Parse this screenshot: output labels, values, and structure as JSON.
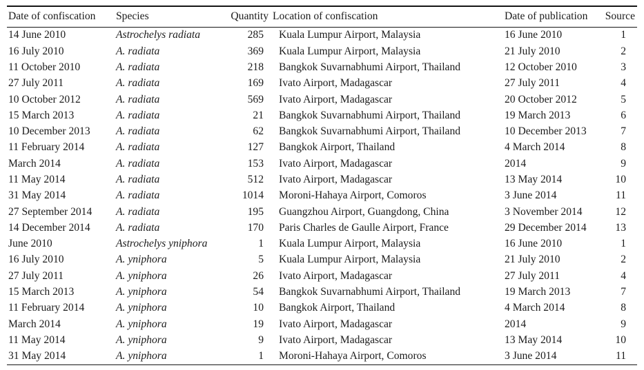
{
  "table": {
    "columns": [
      {
        "key": "date_of_confiscation",
        "label": "Date of confiscation",
        "align": "left"
      },
      {
        "key": "species",
        "label": "Species",
        "align": "left",
        "style": "italic-cells"
      },
      {
        "key": "quantity",
        "label": "Quantity",
        "align": "right"
      },
      {
        "key": "location_of_confiscation",
        "label": "Location of confiscation",
        "align": "left"
      },
      {
        "key": "date_of_publication",
        "label": "Date of publication",
        "align": "left"
      },
      {
        "key": "source",
        "label": "Source",
        "align": "right"
      }
    ],
    "rows": [
      [
        "14 June 2010",
        "Astrochelys radiata",
        "285",
        "Kuala Lumpur Airport, Malaysia",
        "16 June 2010",
        "1"
      ],
      [
        "16 July 2010",
        "A. radiata",
        "369",
        "Kuala Lumpur Airport, Malaysia",
        "21 July 2010",
        "2"
      ],
      [
        "11 October 2010",
        "A. radiata",
        "218",
        "Bangkok Suvarnabhumi Airport, Thailand",
        "12 October 2010",
        "3"
      ],
      [
        "27 July 2011",
        "A. radiata",
        "169",
        "Ivato Airport, Madagascar",
        "27 July 2011",
        "4"
      ],
      [
        "10 October 2012",
        "A. radiata",
        "569",
        "Ivato Airport, Madagascar",
        "20 October 2012",
        "5"
      ],
      [
        "15 March 2013",
        "A. radiata",
        "21",
        "Bangkok Suvarnabhumi Airport, Thailand",
        "19 March 2013",
        "6"
      ],
      [
        "10 December 2013",
        "A. radiata",
        "62",
        "Bangkok Suvarnabhumi Airport, Thailand",
        "10 December 2013",
        "7"
      ],
      [
        "11 February 2014",
        "A. radiata",
        "127",
        "Bangkok Airport, Thailand",
        "4 March 2014",
        "8"
      ],
      [
        "March 2014",
        "A. radiata",
        "153",
        "Ivato Airport, Madagascar",
        "2014",
        "9"
      ],
      [
        "11 May 2014",
        "A. radiata",
        "512",
        "Ivato Airport, Madagascar",
        "13 May 2014",
        "10"
      ],
      [
        "31 May 2014",
        "A. radiata",
        "1014",
        "Moroni-Hahaya Airport, Comoros",
        "3 June 2014",
        "11"
      ],
      [
        "27 September 2014",
        "A. radiata",
        "195",
        "Guangzhou Airport, Guangdong, China",
        "3 November 2014",
        "12"
      ],
      [
        "14 December 2014",
        "A. radiata",
        "170",
        "Paris Charles de Gaulle Airport, France",
        "29 December 2014",
        "13"
      ],
      [
        "June 2010",
        "Astrochelys yniphora",
        "1",
        "Kuala Lumpur Airport, Malaysia",
        "16 June 2010",
        "1"
      ],
      [
        "16 July 2010",
        "A. yniphora",
        "5",
        "Kuala Lumpur Airport, Malaysia",
        "21 July 2010",
        "2"
      ],
      [
        "27 July 2011",
        "A. yniphora",
        "26",
        "Ivato Airport, Madagascar",
        "27 July 2011",
        "4"
      ],
      [
        "15 March 2013",
        "A. yniphora",
        "54",
        "Bangkok Suvarnabhumi Airport, Thailand",
        "19 March 2013",
        "7"
      ],
      [
        "11 February 2014",
        "A. yniphora",
        "10",
        "Bangkok Airport, Thailand",
        "4 March 2014",
        "8"
      ],
      [
        "March 2014",
        "A. yniphora",
        "19",
        "Ivato Airport, Madagascar",
        "2014",
        "9"
      ],
      [
        "11 May 2014",
        "A. yniphora",
        "9",
        "Ivato Airport, Madagascar",
        "13 May 2014",
        "10"
      ],
      [
        "31 May 2014",
        "A. yniphora",
        "1",
        "Moroni-Hahaya Airport, Comoros",
        "3 June 2014",
        "11"
      ]
    ],
    "colors": {
      "text": "#1b1b1b",
      "rule": "#141414",
      "background": "#ffffff"
    }
  }
}
